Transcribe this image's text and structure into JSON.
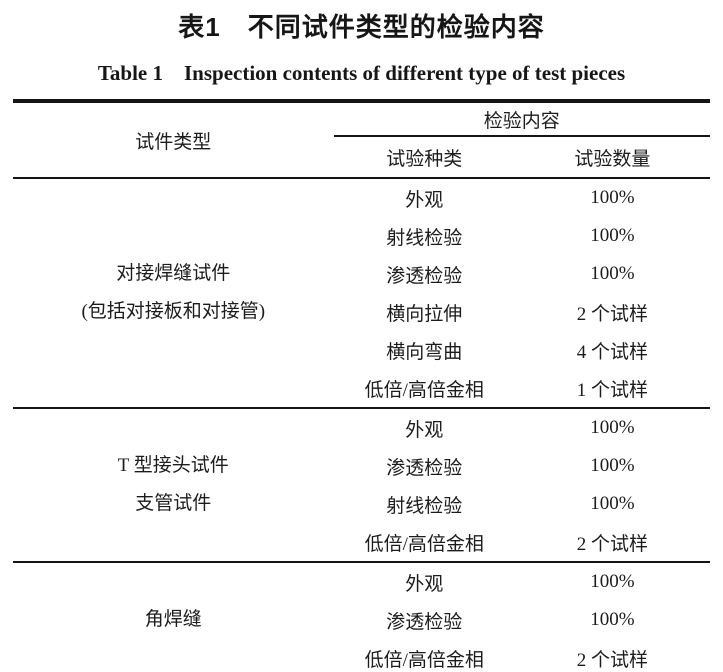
{
  "title": {
    "zh": "表1　不同试件类型的检验内容",
    "en": "Table 1　Inspection contents of different type of test pieces"
  },
  "table": {
    "col1_header": "试件类型",
    "group_header": "检验内容",
    "sub_headers": [
      "试验种类",
      "试验数量"
    ],
    "sections": [
      {
        "type_lines": [
          "对接焊缝试件",
          "(包括对接板和对接管)"
        ],
        "rows": [
          [
            "外观",
            "100%"
          ],
          [
            "射线检验",
            "100%"
          ],
          [
            "渗透检验",
            "100%"
          ],
          [
            "横向拉伸",
            "2 个试样"
          ],
          [
            "横向弯曲",
            "4 个试样"
          ],
          [
            "低倍/高倍金相",
            "1 个试样"
          ]
        ]
      },
      {
        "type_lines": [
          "T 型接头试件",
          "支管试件"
        ],
        "rows": [
          [
            "外观",
            "100%"
          ],
          [
            "渗透检验",
            "100%"
          ],
          [
            "射线检验",
            "100%"
          ],
          [
            "低倍/高倍金相",
            "2 个试样"
          ]
        ]
      },
      {
        "type_lines": [
          "角焊缝"
        ],
        "rows": [
          [
            "外观",
            "100%"
          ],
          [
            "渗透检验",
            "100%"
          ],
          [
            "低倍/高倍金相",
            "2 个试样"
          ]
        ]
      }
    ]
  },
  "colors": {
    "text": "#1c1c1c",
    "rule": "#151515",
    "background": "#ffffff"
  }
}
